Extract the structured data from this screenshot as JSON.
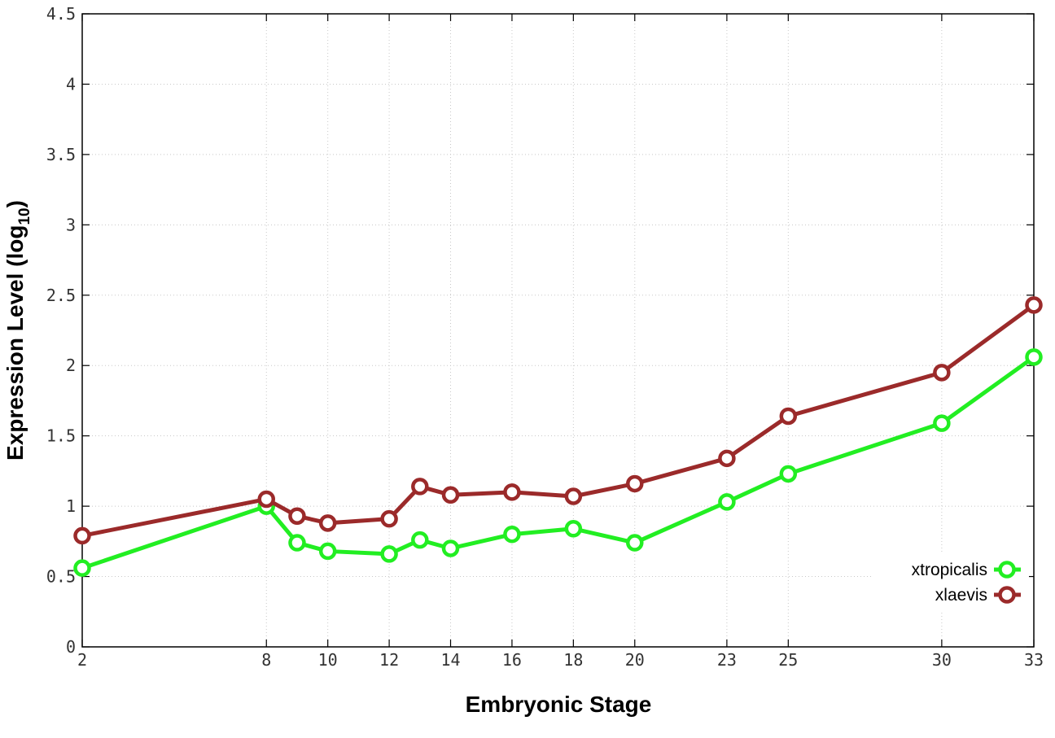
{
  "chart_data": {
    "type": "line",
    "xlabel": "Embryonic Stage",
    "ylabel_main": "Expression Level (log",
    "ylabel_sub": "10",
    "ylabel_close": ")",
    "ylim": [
      0,
      4.5
    ],
    "xlim": [
      2,
      33
    ],
    "grid": true,
    "legend_position": "bottom-right",
    "x_ticks": [
      2,
      8,
      10,
      12,
      14,
      16,
      18,
      20,
      23,
      25,
      30,
      33
    ],
    "x_tick_labels": [
      "2",
      "8",
      "10",
      "12",
      "14",
      "16",
      "18",
      "20",
      "23",
      "25",
      "30",
      "33"
    ],
    "y_ticks": [
      0,
      0.5,
      1,
      1.5,
      2,
      2.5,
      3,
      3.5,
      4,
      4.5
    ],
    "y_tick_labels": [
      "0",
      "0.5",
      "1",
      "1.5",
      "2",
      "2.5",
      "3",
      "3.5",
      "4",
      "4.5"
    ],
    "x": [
      2,
      8,
      9,
      10,
      12,
      13,
      14,
      16,
      18,
      20,
      23,
      25,
      30,
      33
    ],
    "series": [
      {
        "name": "xtropicalis",
        "color": "#22ee22",
        "values": [
          0.56,
          1.0,
          0.74,
          0.68,
          0.66,
          0.76,
          0.7,
          0.8,
          0.84,
          0.74,
          1.03,
          1.23,
          1.59,
          2.06
        ]
      },
      {
        "name": "xlaevis",
        "color": "#9b2a2a",
        "values": [
          0.79,
          1.05,
          0.93,
          0.88,
          0.91,
          1.14,
          1.08,
          1.1,
          1.07,
          1.16,
          1.34,
          1.64,
          1.95,
          2.43
        ]
      }
    ]
  }
}
